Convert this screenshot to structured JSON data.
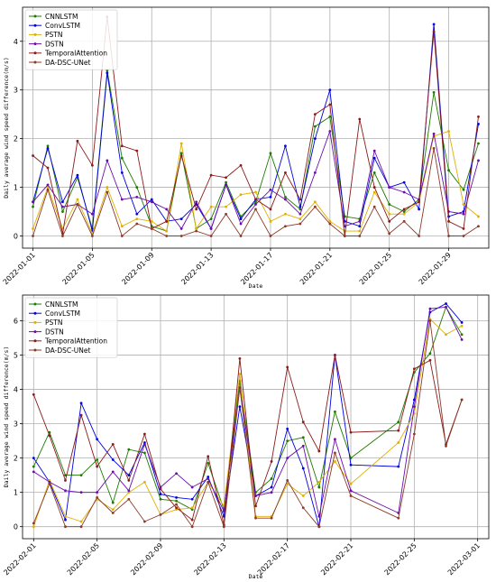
{
  "series_styles": [
    {
      "name": "CNNLSTM",
      "color": "#1f7a00"
    },
    {
      "name": "ConvLSTM",
      "color": "#0000e0"
    },
    {
      "name": "PSTN",
      "color": "#e0b000"
    },
    {
      "name": "DSTN",
      "color": "#6a0dad"
    },
    {
      "name": "TemporalAttention",
      "color": "#8b1a1a"
    },
    {
      "name": "DA-DSC-UNet",
      "color": "#8b3a2a"
    }
  ],
  "chart_data": [
    {
      "type": "line",
      "xlabel": "Date",
      "ylabel": "Daily average wind speed difference(m/s)",
      "ylim": [
        -0.25,
        4.7
      ],
      "yticks": [
        0,
        1,
        2,
        3,
        4
      ],
      "xlim": [
        -0.7,
        30.7
      ],
      "xticks": [
        {
          "label": "2022-01-01",
          "x": 0
        },
        {
          "label": "2022-01-05",
          "x": 4
        },
        {
          "label": "2022-01-09",
          "x": 8
        },
        {
          "label": "2022-01-13",
          "x": 12
        },
        {
          "label": "2022-01-17",
          "x": 16
        },
        {
          "label": "2022-01-21",
          "x": 20
        },
        {
          "label": "2022-01-25",
          "x": 24
        },
        {
          "label": "2022-01-29",
          "x": 28
        }
      ],
      "legend": "upper-left",
      "grid": true,
      "x": [
        0,
        1,
        2,
        3,
        4,
        5,
        6,
        7,
        8,
        9,
        10,
        11,
        12,
        13,
        14,
        15,
        16,
        17,
        18,
        19,
        20,
        21,
        22,
        23,
        24,
        25,
        26,
        27,
        28,
        29,
        30
      ],
      "series": [
        {
          "name": "CNNLSTM",
          "values": [
            0.6,
            1.85,
            0.5,
            1.2,
            0.15,
            3.4,
            1.6,
            1.0,
            0.2,
            0.1,
            1.7,
            0.15,
            0.35,
            1.1,
            0.4,
            0.7,
            1.7,
            0.8,
            0.55,
            2.25,
            2.45,
            0.4,
            0.35,
            1.3,
            0.65,
            0.5,
            0.75,
            2.95,
            1.35,
            0.95,
            1.9
          ]
        },
        {
          "name": "ConvLSTM",
          "values": [
            0.7,
            1.8,
            0.7,
            1.25,
            0.1,
            3.35,
            1.3,
            0.45,
            0.75,
            0.3,
            0.35,
            0.65,
            0.15,
            1.05,
            0.35,
            0.75,
            0.8,
            1.85,
            0.6,
            2.0,
            3.0,
            0.3,
            0.2,
            1.6,
            1.0,
            1.1,
            0.55,
            4.35,
            0.4,
            0.5,
            2.3
          ]
        },
        {
          "name": "PSTN",
          "values": [
            0.15,
            1.0,
            0.15,
            0.75,
            0.05,
            1.0,
            0.2,
            0.35,
            0.3,
            0.1,
            1.9,
            0.15,
            0.6,
            0.6,
            0.85,
            0.9,
            0.3,
            0.45,
            0.35,
            0.7,
            0.3,
            0.1,
            0.1,
            0.9,
            0.45,
            0.45,
            0.7,
            2.05,
            2.15,
            0.65,
            0.4
          ]
        },
        {
          "name": "DSTN",
          "values": [
            0.7,
            1.05,
            0.6,
            0.65,
            0.45,
            1.55,
            0.75,
            0.8,
            0.7,
            0.55,
            0.15,
            0.7,
            0.15,
            1.05,
            0.25,
            0.65,
            0.95,
            0.75,
            0.45,
            1.3,
            2.15,
            0.2,
            0.3,
            1.75,
            1.0,
            0.9,
            0.75,
            2.1,
            0.5,
            0.45,
            1.55
          ]
        },
        {
          "name": "TemporalAttention",
          "values": [
            1.65,
            1.4,
            0.05,
            1.95,
            1.45,
            4.5,
            1.85,
            1.75,
            0.15,
            0.3,
            1.65,
            0.55,
            1.25,
            1.2,
            1.45,
            0.75,
            0.55,
            1.3,
            0.75,
            2.5,
            2.7,
            0.0,
            2.4,
            1.0,
            0.3,
            0.55,
            0.7,
            4.2,
            0.3,
            0.15,
            2.45
          ]
        },
        {
          "name": "DA-DSC-UNet",
          "values": [
            0.0,
            0.95,
            0.0,
            0.65,
            0.0,
            0.9,
            0.0,
            0.25,
            0.15,
            0.0,
            0.0,
            0.1,
            0.0,
            0.45,
            0.0,
            0.55,
            0.0,
            0.2,
            0.25,
            0.6,
            0.25,
            0.0,
            0.0,
            0.6,
            0.05,
            0.3,
            0.0,
            1.8,
            0.0,
            0.0,
            0.2
          ]
        }
      ]
    },
    {
      "type": "line",
      "xlabel": "Date",
      "ylabel": "Daily average wind speed difference(m/s)",
      "ylim": [
        -0.35,
        6.75
      ],
      "yticks": [
        0,
        1,
        2,
        3,
        4,
        5,
        6
      ],
      "xlim": [
        -0.7,
        28.7
      ],
      "xticks": [
        {
          "label": "2022-02-01",
          "x": 0
        },
        {
          "label": "2022-02-05",
          "x": 4
        },
        {
          "label": "2022-02-09",
          "x": 8
        },
        {
          "label": "2022-02-13",
          "x": 12
        },
        {
          "label": "2022-02-17",
          "x": 16
        },
        {
          "label": "2022-02-21",
          "x": 20
        },
        {
          "label": "2022-02-25",
          "x": 24
        },
        {
          "label": "2022-03-01",
          "x": 28
        }
      ],
      "legend": "upper-left",
      "grid": true,
      "x": [
        0,
        1,
        2,
        3,
        4,
        5,
        6,
        7,
        8,
        9,
        10,
        11,
        12,
        13,
        14,
        15,
        16,
        17,
        18,
        19,
        20,
        23,
        24,
        25,
        26,
        27
      ],
      "series": [
        {
          "name": "CNNLSTM",
          "values": [
            1.75,
            2.75,
            1.5,
            1.5,
            1.95,
            0.7,
            2.25,
            2.15,
            0.8,
            0.75,
            0.5,
            1.85,
            0.5,
            4.25,
            1.0,
            1.4,
            2.5,
            2.6,
            1.15,
            3.35,
            2.0,
            3.05,
            4.5,
            5.05,
            6.4,
            5.6
          ]
        },
        {
          "name": "ConvLSTM",
          "values": [
            2.0,
            1.3,
            0.2,
            3.6,
            2.55,
            1.95,
            1.5,
            2.45,
            0.95,
            0.85,
            0.8,
            1.45,
            0.3,
            3.5,
            0.9,
            1.15,
            2.85,
            1.7,
            0.0,
            5.0,
            1.8,
            1.75,
            3.7,
            6.25,
            6.5,
            5.95
          ]
        },
        {
          "name": "PSTN",
          "values": [
            0.0,
            1.35,
            0.3,
            0.15,
            0.8,
            0.5,
            1.0,
            1.3,
            0.35,
            0.5,
            0.55,
            1.3,
            0.6,
            4.45,
            0.3,
            0.3,
            1.25,
            0.9,
            1.3,
            1.9,
            1.25,
            2.45,
            3.3,
            6.05,
            5.6,
            5.85
          ]
        },
        {
          "name": "DSTN",
          "values": [
            1.6,
            1.3,
            1.05,
            1.0,
            1.0,
            1.6,
            1.05,
            2.4,
            1.15,
            1.55,
            1.15,
            1.4,
            0.45,
            4.05,
            0.9,
            1.0,
            2.0,
            2.35,
            0.3,
            2.55,
            1.05,
            0.4,
            3.5,
            6.35,
            6.4,
            5.45
          ]
        },
        {
          "name": "TemporalAttention",
          "values": [
            3.85,
            2.65,
            1.35,
            3.25,
            1.75,
            2.4,
            1.35,
            2.7,
            1.1,
            0.55,
            0.2,
            2.05,
            0.05,
            4.9,
            0.6,
            1.9,
            4.65,
            3.05,
            2.2,
            5.0,
            2.75,
            2.8,
            4.6,
            4.85,
            2.4,
            3.7
          ]
        },
        {
          "name": "DA-DSC-UNet",
          "values": [
            0.1,
            1.25,
            0.0,
            0.0,
            0.85,
            0.4,
            0.8,
            0.15,
            0.35,
            0.65,
            0.0,
            1.3,
            0.0,
            4.05,
            0.25,
            0.25,
            1.35,
            0.55,
            0.0,
            2.15,
            0.9,
            0.25,
            2.7,
            6.0,
            2.35,
            3.7
          ]
        }
      ]
    }
  ]
}
